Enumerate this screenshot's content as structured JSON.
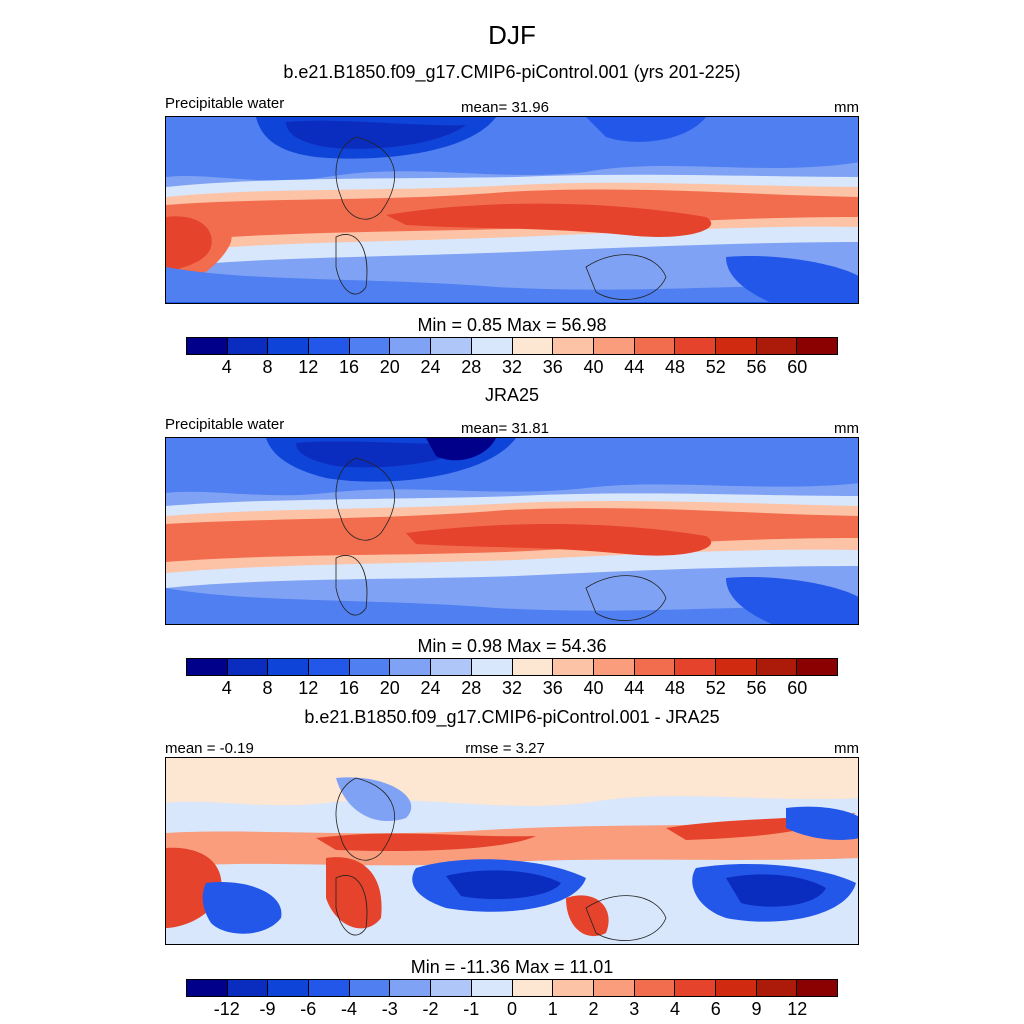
{
  "figure": {
    "season": "DJF",
    "colors": [
      "#00008b",
      "#0b2dbf",
      "#0f44d8",
      "#2357ea",
      "#4f7ff0",
      "#7fa2f4",
      "#afc7f8",
      "#d8e7fb",
      "#fde6d2",
      "#fcc3a6",
      "#f99d7d",
      "#f26d4e",
      "#e5432b",
      "#d02a10",
      "#ac1a0a",
      "#8b0000"
    ]
  },
  "panel1": {
    "title": "b.e21.B1850.f09_g17.CMIP6-piControl.001 (yrs 201-225)",
    "left": "Precipitable water",
    "center": "mean=  31.96",
    "right": "mm",
    "minmax": "Min =   0.85 Max =  56.98",
    "ticks": [
      "4",
      "8",
      "12",
      "16",
      "20",
      "24",
      "28",
      "32",
      "36",
      "40",
      "44",
      "48",
      "52",
      "56",
      "60"
    ]
  },
  "panel2": {
    "title": "JRA25",
    "left": "Precipitable water",
    "center": "mean=  31.81",
    "right": "mm",
    "minmax": "Min =   0.98 Max =  54.36",
    "ticks": [
      "4",
      "8",
      "12",
      "16",
      "20",
      "24",
      "28",
      "32",
      "36",
      "40",
      "44",
      "48",
      "52",
      "56",
      "60"
    ]
  },
  "panel3": {
    "title": "b.e21.B1850.f09_g17.CMIP6-piControl.001 - JRA25",
    "left": "mean =  -0.19",
    "center": "rmse =   3.27",
    "right": "mm",
    "minmax": "Min = -11.36 Max =  11.01",
    "ticks": [
      "-12",
      "-9",
      "-6",
      "-4",
      "-3",
      "-2",
      "-1",
      "0",
      "1",
      "2",
      "3",
      "4",
      "6",
      "9",
      "12"
    ]
  }
}
